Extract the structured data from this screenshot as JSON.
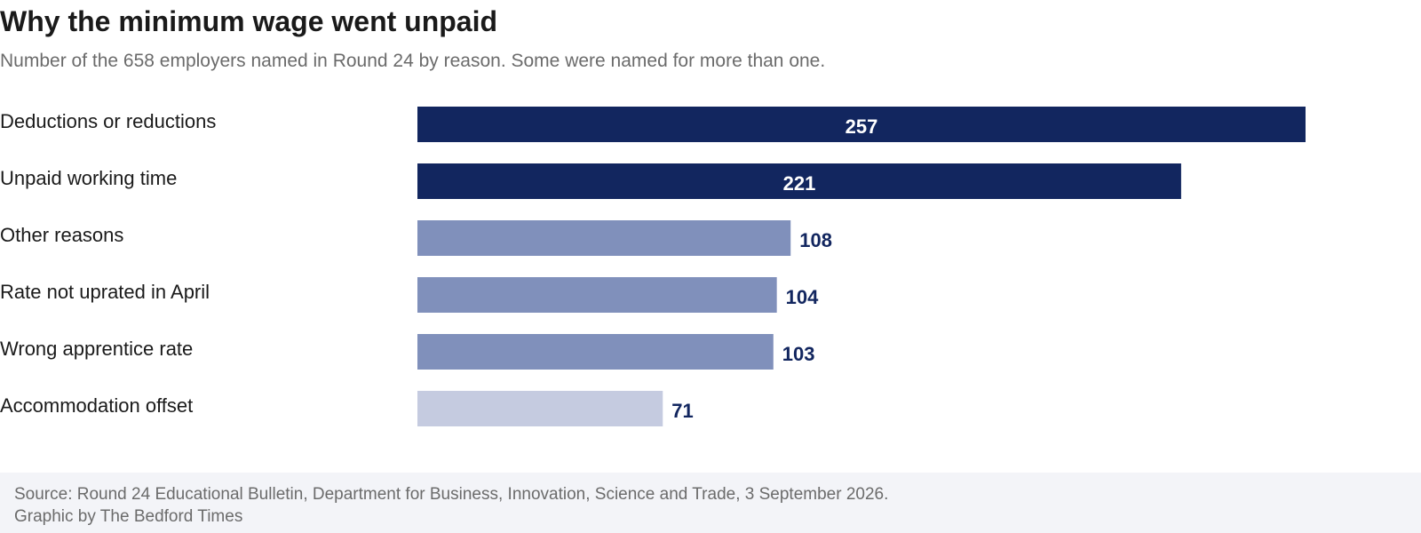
{
  "title": "Why the minimum wage went unpaid",
  "subtitle": "Number of the 658 employers named in Round 24 by reason. Some were named for more than one.",
  "footer": {
    "source": "Source: Round 24 Educational Bulletin, Department for Business, Innovation, Science and Trade, 3 September 2026.",
    "credit": "Graphic by The Bedford Times"
  },
  "colors": {
    "dark": "#12265f",
    "mid": "#8090bb",
    "light": "#c5cbe0",
    "label_inside": "#ffffff",
    "label_outside": "#12265f",
    "category_text": "#1a1a1a"
  },
  "chart_data": {
    "type": "bar",
    "orientation": "horizontal",
    "categories": [
      "Deductions or reductions",
      "Unpaid working time",
      "Other reasons",
      "Rate not uprated in April",
      "Wrong apprentice rate",
      "Accommodation offset"
    ],
    "values": [
      257,
      221,
      108,
      104,
      103,
      71
    ],
    "bar_shades": [
      "dark",
      "dark",
      "mid",
      "mid",
      "mid",
      "light"
    ],
    "value_label_position": [
      "inside",
      "inside",
      "outside",
      "outside",
      "outside",
      "outside"
    ],
    "xlim": [
      0,
      257
    ],
    "grid": false,
    "legend": "none"
  }
}
